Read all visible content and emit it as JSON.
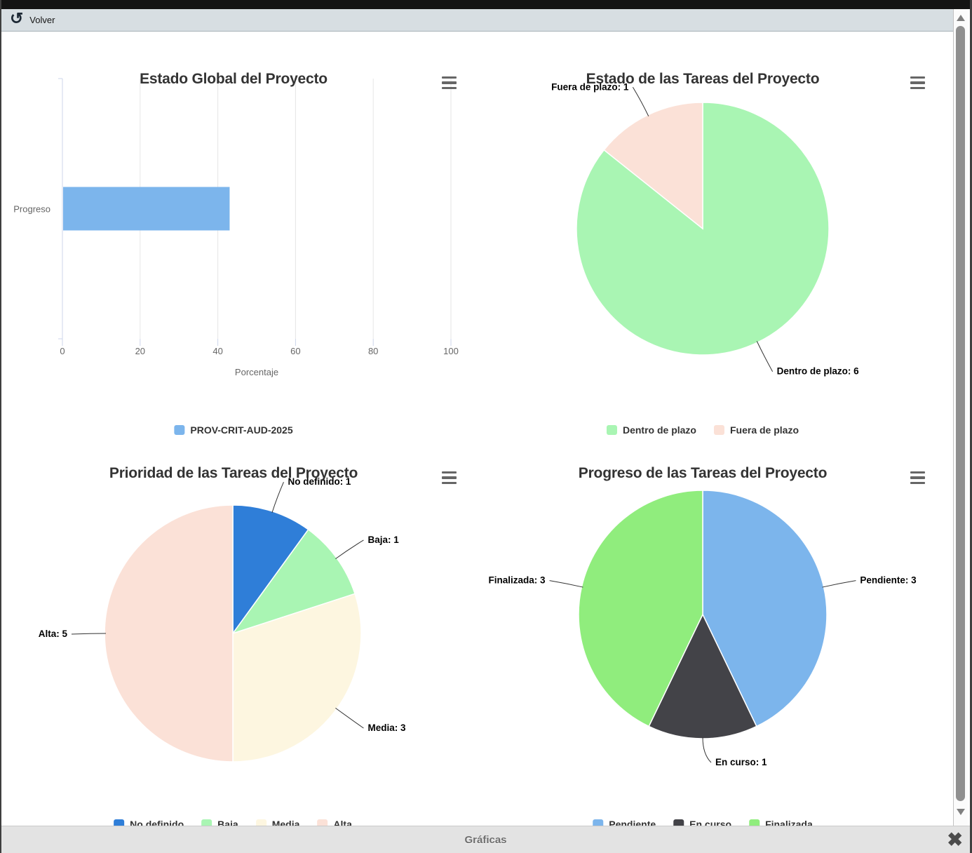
{
  "top_bar": {
    "back_label": "Volver"
  },
  "bottom_bar": {
    "title": "Gráficas"
  },
  "icons": {
    "back": "↺",
    "close": "✖"
  },
  "chart_data": [
    {
      "type": "bar",
      "orientation": "horizontal",
      "title": "Estado Global del Proyecto",
      "categories": [
        "Progreso"
      ],
      "series": [
        {
          "name": "PROV-CRIT-AUD-2025",
          "color": "#7cb5ec",
          "values": [
            42.86
          ]
        }
      ],
      "xlabel": "Porcentaje",
      "xlim": [
        0,
        100
      ],
      "xticks": [
        0,
        20,
        40,
        60,
        80,
        100
      ],
      "grid": true,
      "legend_position": "bottom"
    },
    {
      "type": "pie",
      "title": "Estado de las Tareas del Proyecto",
      "slices": [
        {
          "label": "Dentro de plazo",
          "value": 6,
          "color": "#a9f5b3"
        },
        {
          "label": "Fuera de plazo",
          "value": 1,
          "color": "#fbe1d7"
        }
      ],
      "legend_position": "bottom"
    },
    {
      "type": "pie",
      "title": "Prioridad de las Tareas del Proyecto",
      "slices": [
        {
          "label": "No definido",
          "value": 1,
          "color": "#2f7ed8"
        },
        {
          "label": "Baja",
          "value": 1,
          "color": "#a9f5b3"
        },
        {
          "label": "Media",
          "value": 3,
          "color": "#fdf6e0"
        },
        {
          "label": "Alta",
          "value": 5,
          "color": "#fbe1d7"
        }
      ],
      "legend_position": "bottom"
    },
    {
      "type": "pie",
      "title": "Progreso de las Tareas del Proyecto",
      "slices": [
        {
          "label": "Pendiente",
          "value": 3,
          "color": "#7cb5ec"
        },
        {
          "label": "En curso",
          "value": 1,
          "color": "#434348"
        },
        {
          "label": "Finalizada",
          "value": 3,
          "color": "#90ed7d"
        }
      ],
      "legend_position": "bottom"
    }
  ]
}
